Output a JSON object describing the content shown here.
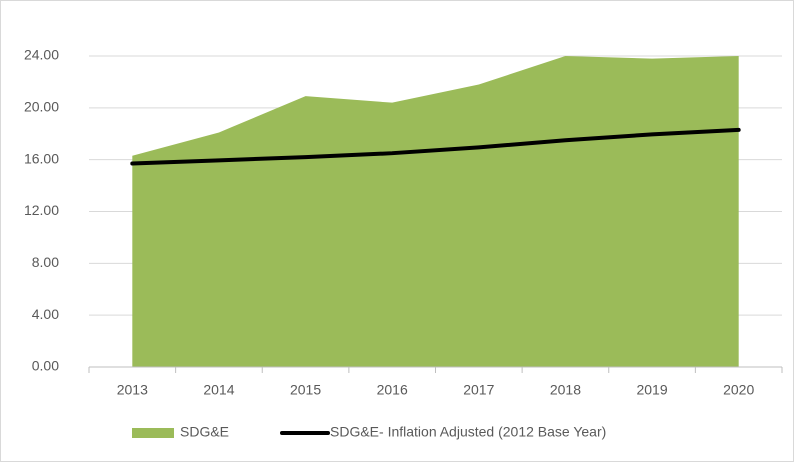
{
  "chart_data": {
    "type": "area-line",
    "categories": [
      "2013",
      "2014",
      "2015",
      "2016",
      "2017",
      "2018",
      "2019",
      "2020"
    ],
    "series": [
      {
        "name": "SDG&E",
        "color": "#9bbb59",
        "kind": "area",
        "values": [
          16.3,
          18.1,
          20.9,
          20.4,
          21.8,
          24.0,
          23.8,
          24.0
        ]
      },
      {
        "name": "SDG&E- Inflation Adjusted (2012 Base Year)",
        "color": "#000000",
        "kind": "line",
        "values": [
          15.7,
          15.95,
          16.2,
          16.5,
          16.95,
          17.5,
          17.95,
          18.3
        ]
      }
    ],
    "ylim": [
      0,
      24
    ],
    "yticks": [
      {
        "value": 0,
        "label": "0.00"
      },
      {
        "value": 4,
        "label": "4.00"
      },
      {
        "value": 8,
        "label": "8.00"
      },
      {
        "value": 12,
        "label": "12.00"
      },
      {
        "value": 16,
        "label": "16.00"
      },
      {
        "value": 20,
        "label": "20.00"
      },
      {
        "value": 24,
        "label": "24.00"
      }
    ],
    "grid": true,
    "legend": "bottom"
  }
}
